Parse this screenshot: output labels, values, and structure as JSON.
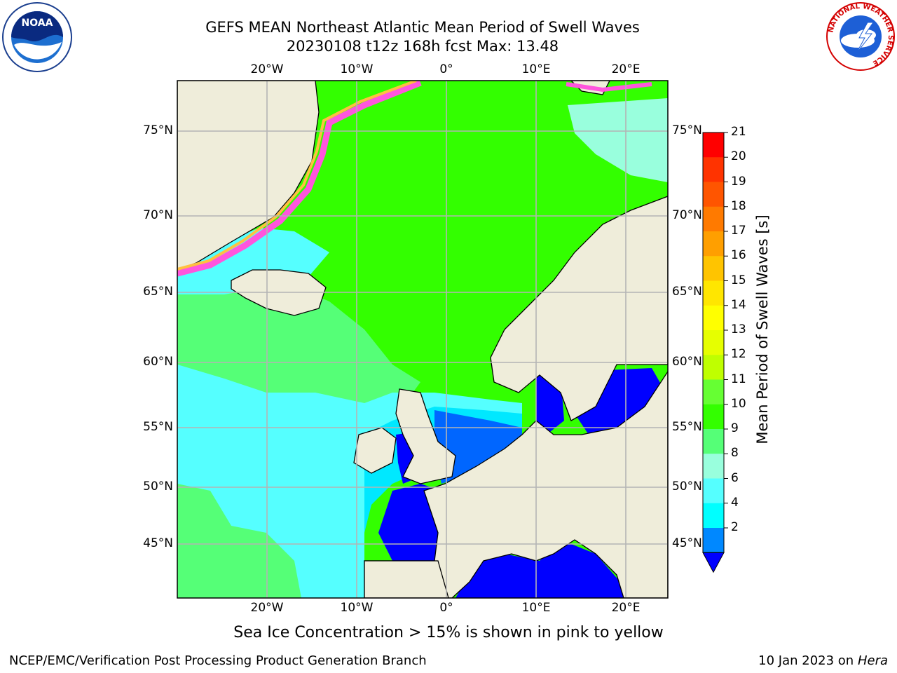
{
  "title": {
    "line1": "GEFS MEAN Northeast Atlantic Mean Period of Swell Waves",
    "line2": "20230108 t12z 168h fcst   Max: 13.48"
  },
  "axes": {
    "lon_labels": [
      "20°W",
      "10°W",
      "0°",
      "10°E",
      "20°E"
    ],
    "lat_labels": [
      "75°N",
      "70°N",
      "65°N",
      "60°N",
      "55°N",
      "50°N",
      "45°N"
    ]
  },
  "colorbar": {
    "title": "Mean Period of Swell Waves [s]",
    "ticks": [
      "21",
      "20",
      "19",
      "18",
      "17",
      "16",
      "15",
      "14",
      "13",
      "12",
      "11",
      "10",
      "9",
      "8",
      "6",
      "4",
      "2"
    ],
    "colors": [
      "#ff0000",
      "#ff3300",
      "#ff5500",
      "#ff7a00",
      "#ff9f00",
      "#ffc400",
      "#ffe600",
      "#ffff00",
      "#e6ff00",
      "#bfff00",
      "#66ff33",
      "#33ff00",
      "#55ff77",
      "#99ffdd",
      "#55ffff",
      "#00ffff",
      "#0088ff",
      "#0000ff"
    ]
  },
  "map_colors": {
    "land": "#efedda",
    "swell_green": "#33ff00",
    "swell_lightgreen": "#55ff77",
    "swell_cyan": "#55ffff",
    "swell_aqua": "#00e8ff",
    "swell_blue": "#0066ff",
    "swell_darkblue": "#0000ff",
    "ice_pink": "#ff55dd",
    "ice_orange": "#ffc040",
    "grid": "#b4b4b4"
  },
  "logos": {
    "noaa_text": "NOAA",
    "nws_text": "NATIONAL WEATHER SERVICE"
  },
  "caption": "Sea Ice Concentration > 15% is shown in pink to yellow",
  "footer": {
    "left": "NCEP/EMC/Verification Post Processing Product Generation Branch",
    "right_date": "10 Jan 2023 on",
    "right_machine": "Hera"
  }
}
